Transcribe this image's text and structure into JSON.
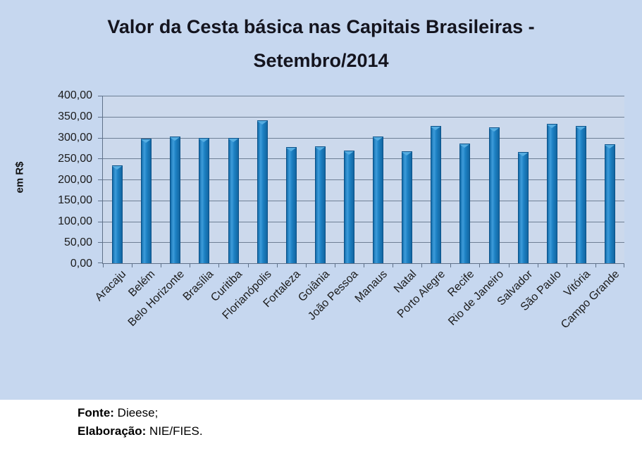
{
  "chart_data": {
    "type": "bar",
    "title": "Valor da Cesta básica nas Capitais Brasileiras - Setembro/2014",
    "title_lines": [
      "Valor da Cesta básica nas Capitais Brasileiras -",
      "Setembro/2014"
    ],
    "ylabel": "em R$",
    "xlabel": "",
    "ylim": [
      0,
      400
    ],
    "ytick_step": 50,
    "ytick_values": [
      0,
      50,
      100,
      150,
      200,
      250,
      300,
      350,
      400
    ],
    "ytick_labels": [
      "0,00",
      "50,00",
      "100,00",
      "150,00",
      "200,00",
      "250,00",
      "300,00",
      "350,00",
      "400,00"
    ],
    "grid": true,
    "legend": "none",
    "categories": [
      "Aracaju",
      "Belém",
      "Belo Horizonte",
      "Brasília",
      "Curitiba",
      "Florianópolis",
      "Fortaleza",
      "Goiânia",
      "João Pessoa",
      "Manaus",
      "Natal",
      "Porto Alegre",
      "Recife",
      "Rio de Janeiro",
      "Salvador",
      "São Paulo",
      "Vitória",
      "Campo Grande"
    ],
    "values": [
      233,
      298,
      302,
      300,
      300,
      341,
      277,
      279,
      269,
      302,
      267,
      327,
      285,
      325,
      265,
      333,
      328,
      284
    ],
    "colors": {
      "panel_bg": "#c6d7ef",
      "plot_bg": "#ccd9ec",
      "bar_main": "#1d81c4",
      "bar_dark": "#0d5f9c",
      "bar_light": "#3e9cda",
      "bar_top": "#56ade1",
      "bar_edge": "#0a5188",
      "gridline": "#6e7f95",
      "axis": "#5f7189",
      "title_text": "#14141e",
      "text": "#1b1b1b"
    }
  },
  "footer": {
    "fonte_label": "Fonte:",
    "fonte_value": "Dieese;",
    "elaboracao_label": "Elaboração:",
    "elaboracao_value": "NIE/FIES."
  }
}
